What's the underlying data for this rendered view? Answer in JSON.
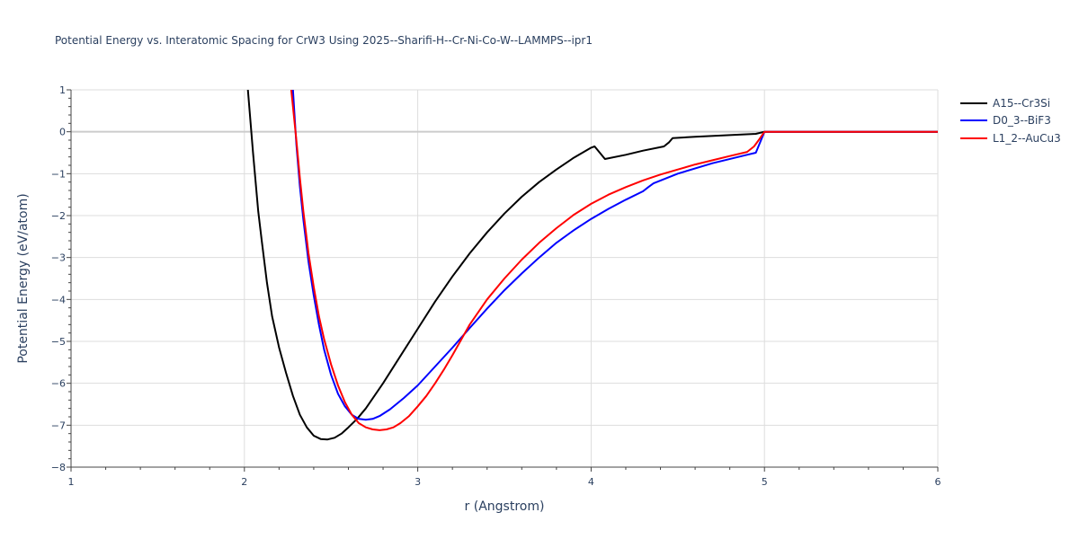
{
  "chart_data": {
    "type": "line",
    "title": "Potential Energy vs. Interatomic Spacing for CrW3 Using 2025--Sharifi-H--Cr-Ni-Co-W--LAMMPS--ipr1",
    "xlabel": "r (Angstrom)",
    "ylabel": "Potential Energy (eV/atom)",
    "xlim": [
      1,
      6
    ],
    "ylim": [
      -8,
      1
    ],
    "xticks": [
      "1",
      "2",
      "3",
      "4",
      "5",
      "6"
    ],
    "yticks": [
      "1",
      "0",
      "−1",
      "−2",
      "−3",
      "−4",
      "−5",
      "−6",
      "−7",
      "−8"
    ],
    "grid": true,
    "legend_position": "top-right",
    "series": [
      {
        "name": "A15--Cr3Si",
        "color": "#000000",
        "x": [
          2.02,
          2.05,
          2.08,
          2.1,
          2.13,
          2.16,
          2.2,
          2.24,
          2.28,
          2.32,
          2.36,
          2.4,
          2.44,
          2.48,
          2.52,
          2.56,
          2.6,
          2.65,
          2.7,
          2.75,
          2.8,
          2.9,
          3.0,
          3.1,
          3.2,
          3.3,
          3.4,
          3.5,
          3.6,
          3.7,
          3.8,
          3.9,
          4.0,
          4.02,
          4.08,
          4.2,
          4.3,
          4.42,
          4.45,
          4.47,
          4.6,
          4.8,
          4.95,
          5.0,
          5.5,
          6.0
        ],
        "y": [
          1.0,
          -0.5,
          -1.9,
          -2.6,
          -3.6,
          -4.4,
          -5.15,
          -5.75,
          -6.3,
          -6.75,
          -7.05,
          -7.25,
          -7.33,
          -7.34,
          -7.3,
          -7.2,
          -7.05,
          -6.85,
          -6.6,
          -6.3,
          -6.0,
          -5.35,
          -4.7,
          -4.05,
          -3.45,
          -2.9,
          -2.4,
          -1.95,
          -1.55,
          -1.2,
          -0.9,
          -0.62,
          -0.38,
          -0.35,
          -0.65,
          -0.55,
          -0.45,
          -0.35,
          -0.25,
          -0.15,
          -0.12,
          -0.08,
          -0.05,
          0.0,
          0.0,
          0.0
        ]
      },
      {
        "name": "D0_3--BiF3",
        "color": "#0000ff",
        "x": [
          2.28,
          2.3,
          2.32,
          2.34,
          2.37,
          2.4,
          2.43,
          2.46,
          2.5,
          2.54,
          2.58,
          2.62,
          2.66,
          2.7,
          2.74,
          2.78,
          2.84,
          2.92,
          3.0,
          3.1,
          3.2,
          3.3,
          3.4,
          3.5,
          3.6,
          3.7,
          3.8,
          3.9,
          4.0,
          4.1,
          4.2,
          4.3,
          4.33,
          4.36,
          4.5,
          4.7,
          4.9,
          4.95,
          5.0,
          5.5,
          6.0
        ],
        "y": [
          1.0,
          -0.3,
          -1.3,
          -2.1,
          -3.1,
          -3.9,
          -4.6,
          -5.2,
          -5.8,
          -6.25,
          -6.55,
          -6.75,
          -6.85,
          -6.87,
          -6.85,
          -6.78,
          -6.62,
          -6.35,
          -6.05,
          -5.6,
          -5.15,
          -4.68,
          -4.22,
          -3.78,
          -3.38,
          -3.0,
          -2.65,
          -2.35,
          -2.08,
          -1.84,
          -1.62,
          -1.42,
          -1.32,
          -1.23,
          -1.0,
          -0.75,
          -0.55,
          -0.5,
          0.0,
          0.0,
          0.0
        ]
      },
      {
        "name": "L1_2--AuCu3",
        "color": "#ff0000",
        "x": [
          2.27,
          2.3,
          2.32,
          2.34,
          2.37,
          2.4,
          2.43,
          2.46,
          2.5,
          2.54,
          2.58,
          2.62,
          2.66,
          2.7,
          2.74,
          2.78,
          2.82,
          2.86,
          2.9,
          2.95,
          3.0,
          3.05,
          3.1,
          3.15,
          3.2,
          3.3,
          3.4,
          3.5,
          3.6,
          3.7,
          3.8,
          3.9,
          4.0,
          4.1,
          4.2,
          4.3,
          4.4,
          4.5,
          4.6,
          4.7,
          4.8,
          4.9,
          4.94,
          4.97,
          5.0,
          5.5,
          6.0
        ],
        "y": [
          1.0,
          -0.2,
          -1.1,
          -1.9,
          -2.9,
          -3.7,
          -4.4,
          -4.95,
          -5.55,
          -6.05,
          -6.45,
          -6.75,
          -6.95,
          -7.05,
          -7.1,
          -7.12,
          -7.1,
          -7.05,
          -6.95,
          -6.78,
          -6.55,
          -6.3,
          -6.0,
          -5.68,
          -5.33,
          -4.6,
          -4.0,
          -3.5,
          -3.05,
          -2.65,
          -2.3,
          -1.98,
          -1.72,
          -1.5,
          -1.32,
          -1.16,
          -1.02,
          -0.9,
          -0.78,
          -0.68,
          -0.58,
          -0.48,
          -0.35,
          -0.18,
          0.0,
          0.0,
          0.0
        ]
      }
    ]
  }
}
